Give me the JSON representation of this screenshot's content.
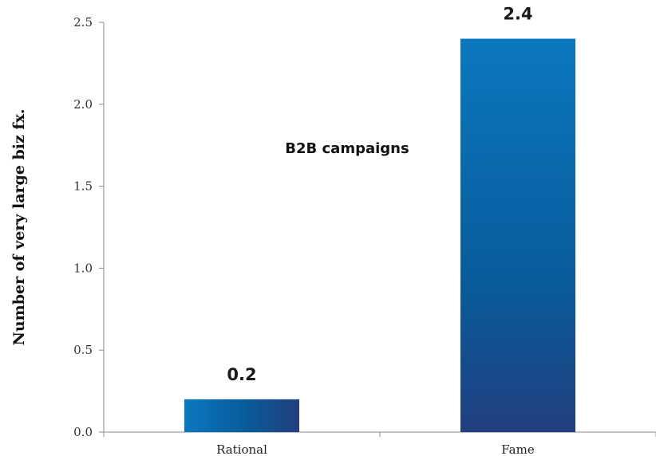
{
  "chart_data": {
    "type": "bar",
    "categories": [
      "Rational",
      "Fame"
    ],
    "values": [
      0.2,
      2.4
    ],
    "data_labels": [
      "0.2",
      "2.4"
    ],
    "ylabel": "Number of very large biz fx.",
    "xlabel": "",
    "ylim": [
      0,
      2.5
    ],
    "yticks": [
      "0.0",
      "0.5",
      "1.0",
      "1.5",
      "2.0",
      "2.5"
    ],
    "annotation": "B2B campaigns",
    "grid": false,
    "legend": "none",
    "colors": {
      "bar_light": "#0a78c0",
      "bar_mid": "#0a5a98",
      "bar_dark": "#213f80",
      "axis": "#8a8a8a"
    }
  }
}
